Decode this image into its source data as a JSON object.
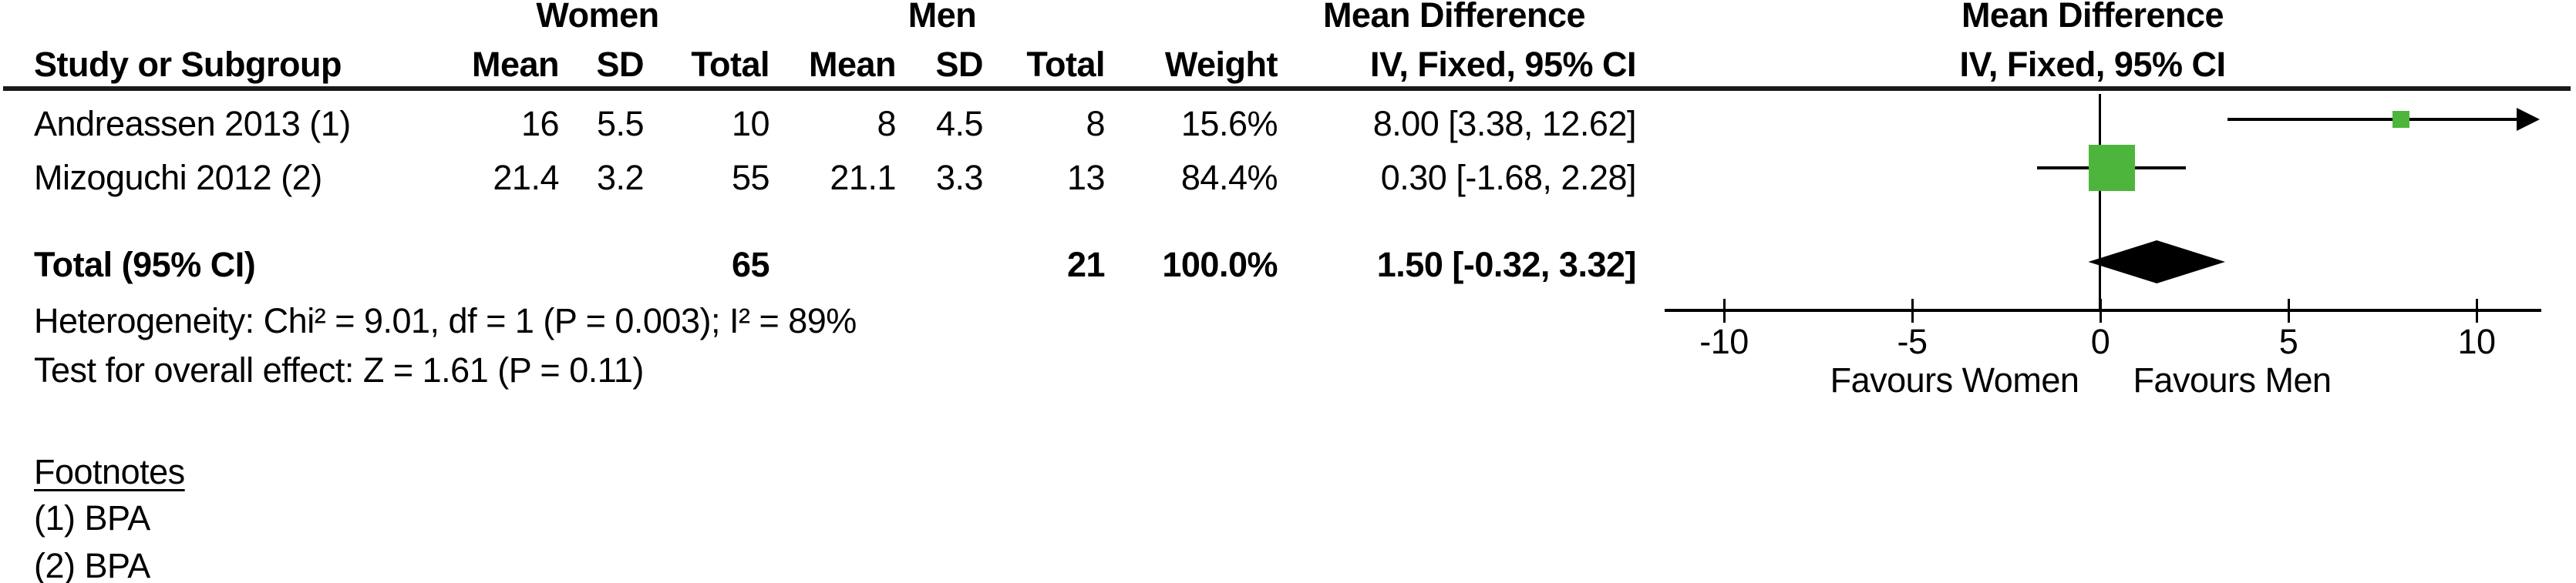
{
  "table": {
    "headers": {
      "study": "Study or Subgroup",
      "group_women": "Women",
      "group_men": "Men",
      "mean_difference": "Mean Difference",
      "mean": "Mean",
      "sd": "SD",
      "total": "Total",
      "weight": "Weight",
      "effect_method": "IV, Fixed, 95% CI"
    },
    "rows": [
      {
        "study": "Andreassen 2013 (1)",
        "w_mean": "16",
        "w_sd": "5.5",
        "w_total": "10",
        "m_mean": "8",
        "m_sd": "4.5",
        "m_total": "8",
        "weight": "15.6%",
        "ci": "8.00 [3.38, 12.62]"
      },
      {
        "study": "Mizoguchi 2012 (2)",
        "w_mean": "21.4",
        "w_sd": "3.2",
        "w_total": "55",
        "m_mean": "21.1",
        "m_sd": "3.3",
        "m_total": "13",
        "weight": "84.4%",
        "ci": "0.30 [-1.68, 2.28]"
      }
    ],
    "total_row": {
      "label": "Total (95% CI)",
      "w_total": "65",
      "m_total": "21",
      "weight": "100.0%",
      "ci": "1.50 [-0.32, 3.32]"
    },
    "heterogeneity": "Heterogeneity: Chi² = 9.01, df = 1 (P = 0.003); I² = 89%",
    "overall_effect": "Test for overall effect: Z = 1.61 (P = 0.11)",
    "footnotes": {
      "title": "Footnotes",
      "items": [
        "(1) BPA",
        "(2) BPA"
      ]
    }
  },
  "chart_data": {
    "type": "forest",
    "title": "Mean Difference",
    "subtitle": "IV, Fixed, 95% CI",
    "effect_measure": "Mean Difference (IV, Fixed, 95% CI)",
    "axis": {
      "min": -10,
      "max": 10,
      "ticks": [
        -10,
        -5,
        0,
        5,
        10
      ],
      "tick_labels": [
        "-10",
        "-5",
        "0",
        "5",
        "10"
      ]
    },
    "xlabel_left": "Favours Women",
    "xlabel_right": "Favours Men",
    "studies": [
      {
        "name": "Andreassen 2013 (1)",
        "md": 8.0,
        "ci_low": 3.38,
        "ci_high": 12.62,
        "weight_pct": 15.6
      },
      {
        "name": "Mizoguchi 2012 (2)",
        "md": 0.3,
        "ci_low": -1.68,
        "ci_high": 2.28,
        "weight_pct": 84.4
      }
    ],
    "total": {
      "label": "Total (95% CI)",
      "md": 1.5,
      "ci_low": -0.32,
      "ci_high": 3.32,
      "weight_pct": 100.0
    },
    "marker_color": "#4DB53C",
    "diamond_color": "#000000"
  }
}
